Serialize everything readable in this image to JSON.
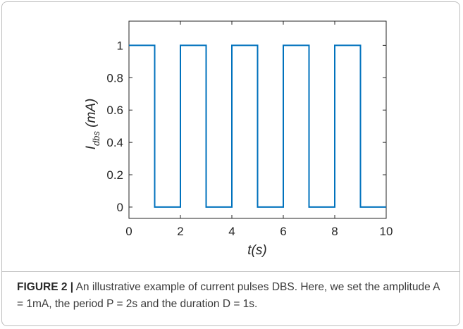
{
  "caption": {
    "label": "FIGURE 2 |",
    "text": " An illustrative example of current pulses DBS. Here, we set the amplitude A = 1mA, the period P = 2s and the duration D = 1s."
  },
  "chart_data": {
    "type": "line",
    "title": "",
    "xlabel": "t(s)",
    "ylabel": "I_dbs (mA)",
    "ylabel_main": "I",
    "ylabel_sub": "dbs",
    "ylabel_unit": " (mA)",
    "xlim": [
      0,
      10
    ],
    "ylim": [
      -0.07,
      1.15
    ],
    "xticks": [
      0,
      2,
      4,
      6,
      8,
      10
    ],
    "xtick_labels": [
      "0",
      "2",
      "4",
      "6",
      "8",
      "10"
    ],
    "yticks": [
      0,
      0.2,
      0.4,
      0.6,
      0.8,
      1
    ],
    "ytick_labels": [
      "0",
      "0.2",
      "0.4",
      "0.6",
      "0.8",
      "1"
    ],
    "grid": false,
    "line_color": "#0072BD",
    "series": [
      {
        "x": [
          0,
          1,
          1,
          2,
          2,
          3,
          3,
          4,
          4,
          5,
          5,
          6,
          6,
          7,
          7,
          8,
          8,
          9,
          9,
          10
        ],
        "y": [
          1,
          1,
          0,
          0,
          1,
          1,
          0,
          0,
          1,
          1,
          0,
          0,
          1,
          1,
          0,
          0,
          1,
          1,
          0,
          0
        ]
      }
    ]
  }
}
